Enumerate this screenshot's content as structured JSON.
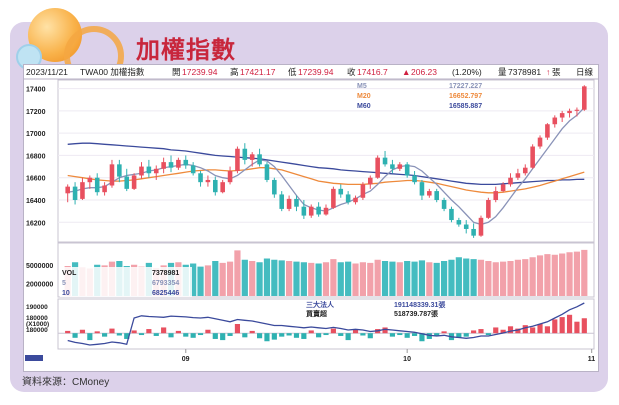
{
  "title": "加權指數",
  "source": "資料來源：CMoney",
  "header": {
    "date": "2023/11/21",
    "symbol": "TWA00 加權指數",
    "open_label": "開",
    "open": "17239.94",
    "high_label": "高",
    "high": "17421.17",
    "low_label": "低",
    "low": "17239.94",
    "close_label": "收",
    "close": "17416.7",
    "change": "206.23",
    "change_pct": "(1.20%)",
    "volume_label": "量",
    "volume": "7378981",
    "volume_unit": "張",
    "period": "日線"
  },
  "colors": {
    "up": "#e8505f",
    "down": "#2eb1b1",
    "ma5": "#8a93b8",
    "ma20": "#ee8a3c",
    "ma60": "#3b4a9c",
    "panel": "#dcd1ea",
    "title": "#c8263c"
  },
  "chart_data": [
    {
      "type": "candlestick",
      "name": "price",
      "legend": [
        {
          "name": "M5",
          "value": "17227.227"
        },
        {
          "name": "M20",
          "value": "16652.797"
        },
        {
          "name": "M60",
          "value": "16585.887"
        }
      ],
      "ylim": [
        16050,
        17450
      ],
      "yticks": [
        16200,
        16400,
        16600,
        16800,
        17000,
        17200,
        17400
      ],
      "xticks": [
        {
          "label": "09",
          "index": 16
        },
        {
          "label": "10",
          "index": 46
        },
        {
          "label": "11",
          "index": 71
        }
      ],
      "candles": [
        [
          16460,
          16540,
          16380,
          16520
        ],
        [
          16520,
          16560,
          16360,
          16400
        ],
        [
          16410,
          16600,
          16400,
          16560
        ],
        [
          16560,
          16620,
          16500,
          16600
        ],
        [
          16600,
          16640,
          16440,
          16470
        ],
        [
          16470,
          16560,
          16440,
          16530
        ],
        [
          16530,
          16760,
          16510,
          16720
        ],
        [
          16720,
          16760,
          16560,
          16610
        ],
        [
          16610,
          16680,
          16480,
          16500
        ],
        [
          16500,
          16640,
          16490,
          16620
        ],
        [
          16620,
          16740,
          16590,
          16700
        ],
        [
          16700,
          16760,
          16600,
          16640
        ],
        [
          16640,
          16710,
          16580,
          16680
        ],
        [
          16680,
          16780,
          16640,
          16740
        ],
        [
          16740,
          16800,
          16650,
          16690
        ],
        [
          16690,
          16780,
          16670,
          16760
        ],
        [
          16760,
          16800,
          16680,
          16710
        ],
        [
          16710,
          16740,
          16620,
          16640
        ],
        [
          16640,
          16660,
          16520,
          16560
        ],
        [
          16560,
          16620,
          16520,
          16580
        ],
        [
          16580,
          16610,
          16440,
          16470
        ],
        [
          16470,
          16580,
          16460,
          16560
        ],
        [
          16560,
          16700,
          16540,
          16660
        ],
        [
          16660,
          16880,
          16640,
          16860
        ],
        [
          16860,
          16910,
          16720,
          16760
        ],
        [
          16760,
          16830,
          16700,
          16810
        ],
        [
          16810,
          16860,
          16700,
          16720
        ],
        [
          16720,
          16740,
          16560,
          16580
        ],
        [
          16580,
          16600,
          16420,
          16450
        ],
        [
          16450,
          16480,
          16300,
          16320
        ],
        [
          16320,
          16440,
          16300,
          16410
        ],
        [
          16410,
          16440,
          16300,
          16340
        ],
        [
          16340,
          16400,
          16230,
          16260
        ],
        [
          16260,
          16360,
          16240,
          16340
        ],
        [
          16340,
          16380,
          16250,
          16270
        ],
        [
          16270,
          16360,
          16260,
          16330
        ],
        [
          16330,
          16520,
          16320,
          16500
        ],
        [
          16500,
          16540,
          16420,
          16450
        ],
        [
          16450,
          16480,
          16360,
          16380
        ],
        [
          16380,
          16440,
          16360,
          16420
        ],
        [
          16420,
          16560,
          16400,
          16540
        ],
        [
          16540,
          16620,
          16500,
          16600
        ],
        [
          16600,
          16800,
          16590,
          16780
        ],
        [
          16780,
          16840,
          16700,
          16720
        ],
        [
          16720,
          16760,
          16640,
          16680
        ],
        [
          16680,
          16740,
          16660,
          16720
        ],
        [
          16720,
          16740,
          16600,
          16620
        ],
        [
          16620,
          16660,
          16540,
          16560
        ],
        [
          16560,
          16580,
          16400,
          16440
        ],
        [
          16440,
          16500,
          16420,
          16480
        ],
        [
          16480,
          16500,
          16380,
          16400
        ],
        [
          16400,
          16420,
          16300,
          16320
        ],
        [
          16320,
          16340,
          16200,
          16220
        ],
        [
          16220,
          16240,
          16160,
          16180
        ],
        [
          16180,
          16220,
          16100,
          16140
        ],
        [
          16140,
          16190,
          16060,
          16080
        ],
        [
          16080,
          16260,
          16070,
          16240
        ],
        [
          16240,
          16420,
          16230,
          16400
        ],
        [
          16400,
          16520,
          16380,
          16480
        ],
        [
          16480,
          16560,
          16470,
          16540
        ],
        [
          16540,
          16640,
          16520,
          16600
        ],
        [
          16600,
          16680,
          16580,
          16640
        ],
        [
          16640,
          16720,
          16620,
          16690
        ],
        [
          16690,
          16900,
          16680,
          16880
        ],
        [
          16880,
          16980,
          16860,
          16960
        ],
        [
          16960,
          17090,
          16940,
          17080
        ],
        [
          17080,
          17160,
          17050,
          17140
        ],
        [
          17140,
          17200,
          17100,
          17180
        ],
        [
          17180,
          17220,
          17140,
          17200
        ],
        [
          17200,
          17230,
          17150,
          17210
        ],
        [
          17210,
          17430,
          17200,
          17420
        ]
      ],
      "ma5": [
        16470,
        16480,
        16500,
        16510,
        16510,
        16520,
        16560,
        16600,
        16620,
        16630,
        16640,
        16660,
        16670,
        16690,
        16700,
        16710,
        16720,
        16710,
        16690,
        16660,
        16620,
        16600,
        16590,
        16620,
        16670,
        16720,
        16760,
        16750,
        16700,
        16620,
        16530,
        16440,
        16360,
        16330,
        16310,
        16300,
        16330,
        16360,
        16380,
        16410,
        16450,
        16480,
        16540,
        16610,
        16670,
        16700,
        16710,
        16700,
        16660,
        16600,
        16540,
        16470,
        16400,
        16340,
        16270,
        16200,
        16180,
        16200,
        16250,
        16330,
        16420,
        16510,
        16590,
        16680,
        16770,
        16860,
        16950,
        17040,
        17110,
        17160,
        17230
      ],
      "ma20": [
        16620,
        16610,
        16600,
        16590,
        16580,
        16575,
        16570,
        16570,
        16575,
        16580,
        16590,
        16600,
        16610,
        16620,
        16630,
        16640,
        16650,
        16660,
        16665,
        16670,
        16670,
        16665,
        16660,
        16665,
        16670,
        16680,
        16690,
        16690,
        16680,
        16670,
        16650,
        16630,
        16610,
        16590,
        16570,
        16560,
        16550,
        16545,
        16540,
        16540,
        16540,
        16545,
        16550,
        16560,
        16565,
        16570,
        16575,
        16575,
        16570,
        16560,
        16550,
        16535,
        16520,
        16505,
        16490,
        16480,
        16470,
        16465,
        16465,
        16470,
        16480,
        16490,
        16500,
        16515,
        16530,
        16550,
        16570,
        16590,
        16610,
        16630,
        16650
      ],
      "ma60": [
        16900,
        16905,
        16910,
        16910,
        16905,
        16900,
        16895,
        16890,
        16885,
        16880,
        16875,
        16870,
        16865,
        16860,
        16850,
        16845,
        16840,
        16830,
        16820,
        16810,
        16800,
        16795,
        16790,
        16785,
        16780,
        16775,
        16770,
        16760,
        16750,
        16740,
        16730,
        16720,
        16710,
        16700,
        16690,
        16685,
        16680,
        16670,
        16665,
        16660,
        16655,
        16650,
        16645,
        16640,
        16635,
        16630,
        16625,
        16620,
        16610,
        16600,
        16590,
        16580,
        16570,
        16560,
        16550,
        16545,
        16540,
        16540,
        16540,
        16545,
        16550,
        16555,
        16560,
        16565,
        16570,
        16575,
        16575,
        16580,
        16580,
        16585,
        16586
      ]
    },
    {
      "type": "bar",
      "name": "volume",
      "ylim": [
        0,
        8000000
      ],
      "yticks": [
        2000000,
        5000000
      ],
      "legend": [
        {
          "name": "VOL",
          "value": "7378981"
        },
        {
          "name": "5",
          "value": "6793354"
        },
        {
          "name": "10",
          "value": "6825446"
        }
      ],
      "values": [
        4800000,
        5400000,
        4600000,
        4400000,
        5000000,
        4900000,
        5500000,
        5600000,
        4800000,
        5000000,
        4700000,
        5300000,
        4500000,
        4900000,
        5300000,
        5400000,
        5000000,
        5200000,
        4700000,
        4900000,
        5600000,
        5300000,
        5500000,
        7300000,
        5800000,
        5600000,
        5400000,
        6000000,
        5800000,
        5700000,
        5600000,
        5500000,
        5400000,
        5300000,
        5200000,
        5400000,
        5900000,
        5400000,
        5500000,
        5200000,
        5400000,
        5300000,
        5800000,
        5600000,
        5500000,
        5400000,
        5600000,
        5500000,
        5700000,
        5400000,
        5300000,
        5600000,
        5800000,
        6200000,
        6000000,
        5900000,
        5800000,
        5600000,
        5400000,
        5500000,
        5600000,
        5800000,
        5900000,
        6200000,
        6500000,
        6700000,
        6600000,
        6800000,
        7000000,
        7100000,
        7378981
      ]
    },
    {
      "type": "bar",
      "name": "institutional",
      "legend": [
        {
          "name": "三大法人",
          "value": "191148339.31張"
        },
        {
          "name": "買賣超",
          "value": "518739.787張"
        }
      ],
      "ylim": [
        -60000,
        140000
      ],
      "ytick_labels": [
        "190000",
        "180000",
        "(X1000)",
        "180000"
      ],
      "values": [
        10000,
        -20000,
        15000,
        -30000,
        8000,
        -15000,
        20000,
        -10000,
        -25000,
        12000,
        -8000,
        18000,
        -12000,
        25000,
        -18000,
        10000,
        -15000,
        -20000,
        -8000,
        15000,
        -25000,
        -30000,
        -12000,
        40000,
        -18000,
        10000,
        -22000,
        -35000,
        -28000,
        -15000,
        -10000,
        -20000,
        -25000,
        12000,
        -18000,
        -8000,
        20000,
        -12000,
        -30000,
        15000,
        -10000,
        -22000,
        18000,
        25000,
        -15000,
        -8000,
        -20000,
        -12000,
        -35000,
        -25000,
        -10000,
        8000,
        -30000,
        -20000,
        -15000,
        12000,
        18000,
        -8000,
        25000,
        15000,
        30000,
        20000,
        35000,
        25000,
        40000,
        30000,
        60000,
        70000,
        80000,
        50000,
        65000
      ],
      "cumulative": [
        30000,
        25000,
        22000,
        18000,
        20000,
        22000,
        26000,
        24000,
        20000,
        90000,
        96000,
        94000,
        93000,
        92000,
        95000,
        94000,
        93000,
        91000,
        90000,
        92000,
        88000,
        84000,
        80000,
        86000,
        84000,
        82000,
        78000,
        74000,
        70000,
        70000,
        68000,
        66000,
        64000,
        66000,
        64000,
        62000,
        65000,
        62000,
        58000,
        60000,
        58000,
        54000,
        56000,
        60000,
        58000,
        56000,
        54000,
        52000,
        48000,
        44000,
        42000,
        44000,
        40000,
        38000,
        36000,
        38000,
        42000,
        42000,
        46000,
        50000,
        55000,
        58000,
        64000,
        68000,
        74000,
        80000,
        90000,
        100000,
        112000,
        120000,
        130000
      ]
    }
  ]
}
